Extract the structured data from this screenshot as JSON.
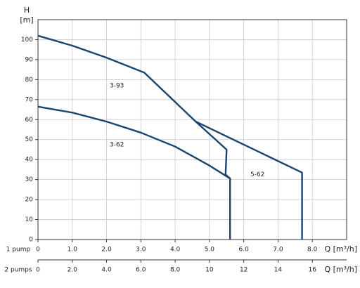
{
  "chart_data": {
    "type": "line",
    "y_label": "H",
    "y_unit": "[m]",
    "x_label": "1 pump",
    "x_unit": "Q [m³/h]",
    "x2_label": "2 pumps",
    "x2_unit": "Q [m³/h]",
    "xlim": [
      0,
      9
    ],
    "ylim": [
      0,
      110
    ],
    "x2lim": [
      0,
      18
    ],
    "xticks": [
      0,
      {
        "value": 1,
        "label": "1.0"
      },
      {
        "value": 2,
        "label": "2.0"
      },
      {
        "value": 3,
        "label": "3.0"
      },
      {
        "value": 4,
        "label": "4.0"
      },
      {
        "value": 5,
        "label": "5.0"
      },
      {
        "value": 6,
        "label": "6.0"
      },
      {
        "value": 7,
        "label": "7.0"
      },
      {
        "value": 8,
        "label": "8.0"
      }
    ],
    "x2ticks": [
      0,
      {
        "value": 2,
        "label": "2.0"
      },
      {
        "value": 4,
        "label": "4.0"
      },
      {
        "value": 6,
        "label": "6.0"
      },
      {
        "value": 8,
        "label": "8.0"
      },
      10,
      12,
      14,
      16
    ],
    "yticks": [
      0,
      10,
      20,
      30,
      40,
      50,
      60,
      70,
      80,
      90,
      100
    ],
    "grid": true,
    "series": [
      {
        "name": "3-93",
        "color": "#1b4470",
        "x": [
          0,
          1,
          2,
          3.1,
          4.6,
          5.5,
          5.47,
          5.6
        ],
        "values": [
          102,
          97,
          91,
          83.5,
          59,
          45,
          32.5,
          30.5
        ]
      },
      {
        "name": "3-62",
        "color": "#1b4470",
        "x": [
          0,
          1,
          2,
          3,
          4,
          5,
          5.6,
          5.6
        ],
        "values": [
          66.5,
          63.5,
          59,
          53.5,
          46.5,
          37,
          30.5,
          0
        ]
      },
      {
        "name": "5-62",
        "color": "#1b4470",
        "x": [
          4.6,
          7.7,
          7.7
        ],
        "values": [
          59,
          33.5,
          0
        ]
      }
    ]
  }
}
